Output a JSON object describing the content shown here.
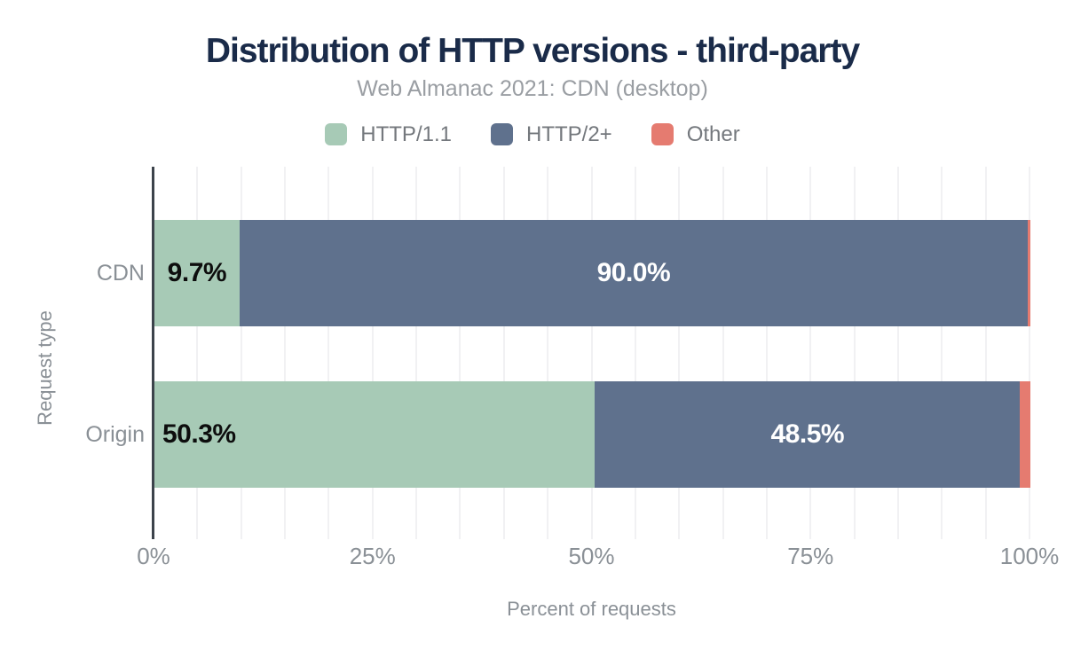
{
  "chart_data": {
    "type": "bar",
    "orientation": "horizontal",
    "stacked": true,
    "title": "Distribution of HTTP versions - third-party",
    "subtitle": "Web Almanac 2021: CDN (desktop)",
    "xlabel": "Percent of requests",
    "ylabel": "Request type",
    "categories": [
      "CDN",
      "Origin"
    ],
    "series": [
      {
        "name": "HTTP/1.1",
        "color": "#a7cab6",
        "values": [
          9.7,
          50.3
        ],
        "labels": [
          "9.7%",
          "50.3%"
        ],
        "label_color": "#0d0d0d",
        "label_align": [
          "center",
          "left"
        ]
      },
      {
        "name": "HTTP/2+",
        "color": "#5f718d",
        "values": [
          90.0,
          48.5
        ],
        "labels": [
          "90.0%",
          "48.5%"
        ],
        "label_color": "#ffffff",
        "label_align": [
          "center",
          "center"
        ]
      },
      {
        "name": "Other",
        "color": "#e57b70",
        "values": [
          0.3,
          1.2
        ],
        "labels": [
          "",
          ""
        ],
        "label_color": "#ffffff",
        "label_align": [
          "center",
          "center"
        ]
      }
    ],
    "xlim": [
      0,
      100
    ],
    "x_ticks": [
      {
        "label": "0%",
        "value": 0
      },
      {
        "label": "25%",
        "value": 25
      },
      {
        "label": "50%",
        "value": 50
      },
      {
        "label": "75%",
        "value": 75
      },
      {
        "label": "100%",
        "value": 100
      }
    ],
    "grid": "vertical minor gridlines every 5%",
    "legend_position": "top center"
  }
}
